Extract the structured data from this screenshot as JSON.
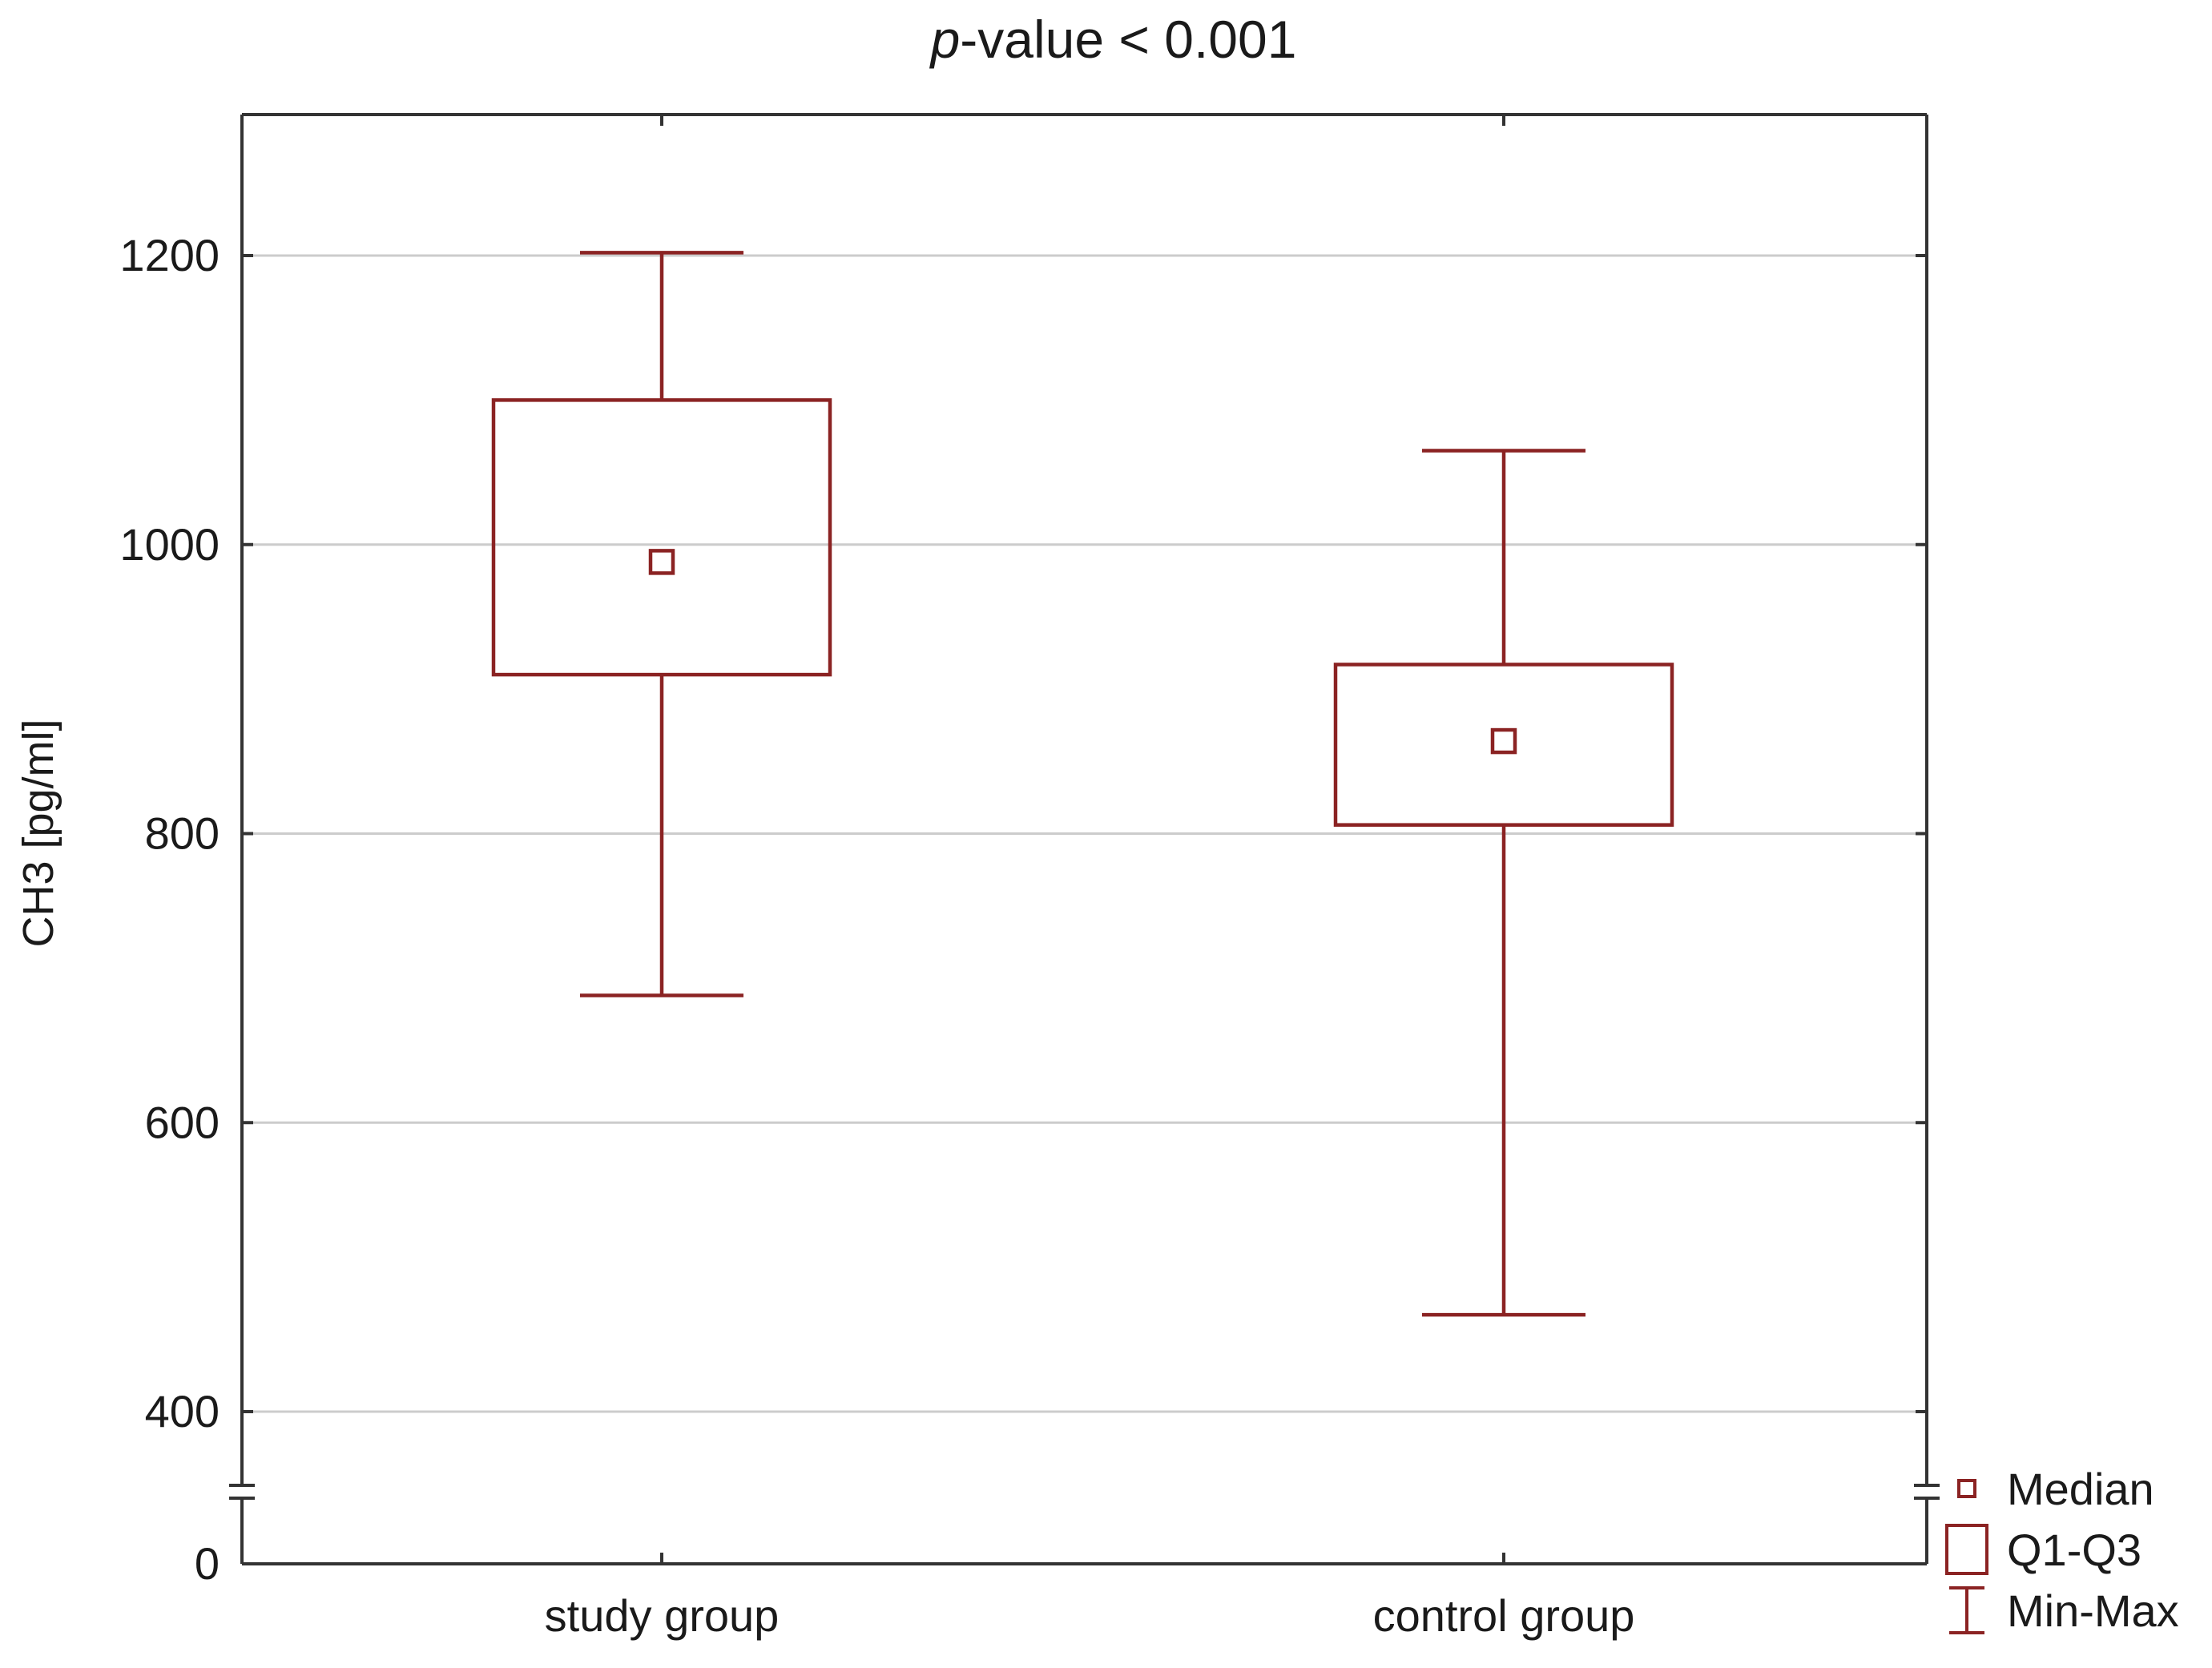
{
  "chart_data": {
    "type": "box",
    "title_prefix": "p",
    "title_rest": "-value < 0.001",
    "xlabel": "",
    "ylabel": "CH3 [pg/ml]",
    "categories": [
      "study group",
      "control group"
    ],
    "boxes": [
      {
        "category": "study group",
        "min": 688,
        "q1": 910,
        "median": 988,
        "q3": 1100,
        "max": 1202
      },
      {
        "category": "control group",
        "min": 467,
        "q1": 806,
        "median": 864,
        "q3": 917,
        "max": 1065
      }
    ],
    "y_ticks": [
      0,
      400,
      600,
      800,
      1000,
      1200
    ],
    "y_tick_labels": [
      "0",
      "400",
      "600",
      "800",
      "1000",
      "1200"
    ],
    "y_axis_break": true,
    "ylim_upper_segment": [
      355,
      1300
    ],
    "grid": true,
    "legend_position": "bottom-right, outside plot",
    "legend": [
      {
        "key": "median",
        "label": "Median"
      },
      {
        "key": "iqr",
        "label": "Q1-Q3"
      },
      {
        "key": "range",
        "label": "Min-Max"
      }
    ],
    "colors": {
      "box": "#8b2323",
      "grid": "#cccccc",
      "axis": "#333333"
    }
  }
}
